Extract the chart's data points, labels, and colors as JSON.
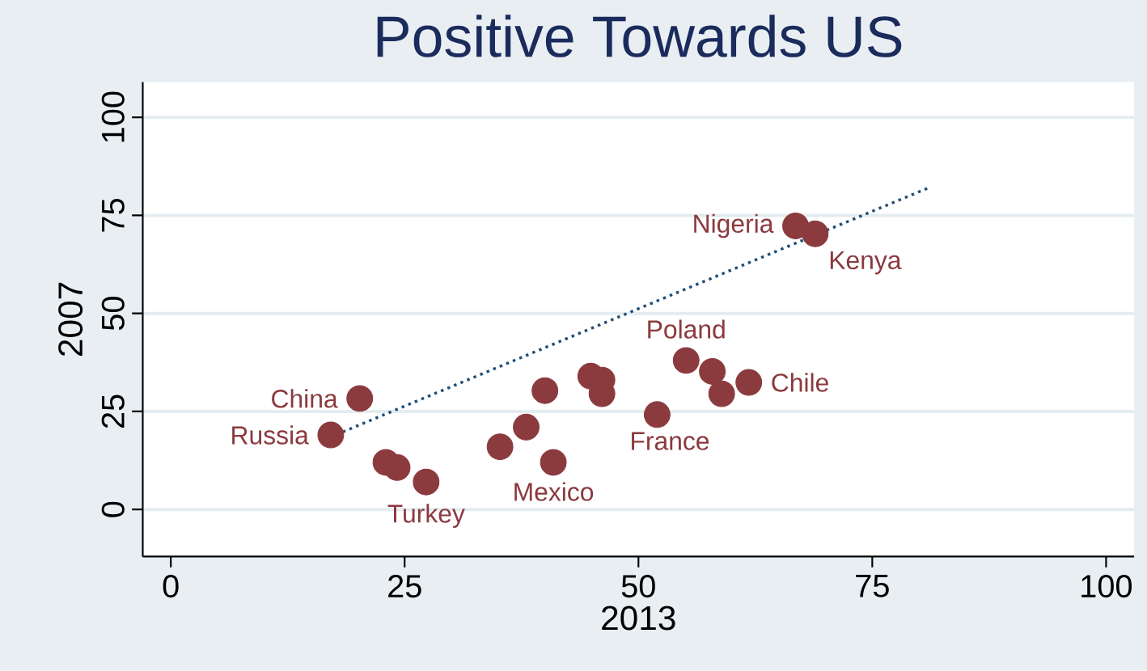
{
  "chart_data": {
    "type": "scatter",
    "title": "Positive Towards US",
    "xlabel": "2013",
    "ylabel": "2007",
    "xlim": [
      -3,
      103
    ],
    "ylim": [
      -12,
      109
    ],
    "xticks": [
      0,
      25,
      50,
      75,
      100
    ],
    "yticks": [
      0,
      25,
      50,
      75,
      100
    ],
    "grid": "y",
    "series": [
      {
        "marker": "circle",
        "color": "#8b3a3e",
        "x": [
          17.1,
          20.2,
          23,
          24.2,
          27.3,
          35.2,
          38,
          40,
          40.9,
          44.9,
          46.1,
          46.1,
          52,
          55.1,
          57.9,
          58.9,
          61.8,
          66.8,
          68.9
        ],
        "values": [
          19,
          28.3,
          12,
          10.7,
          7,
          16,
          21,
          30.3,
          12,
          34,
          33,
          29.5,
          24.2,
          38,
          35.2,
          29.5,
          32.4,
          72.3,
          70.3
        ]
      },
      {
        "type": "line",
        "marker": "none",
        "line_style": "dotted",
        "color": "#1f4e79",
        "x": [
          17,
          81
        ],
        "values": [
          18.4,
          82
        ]
      }
    ],
    "annotations": [
      {
        "text": "Nigeria",
        "x": 66.8,
        "y": 72.3
      },
      {
        "text": "Kenya",
        "x": 68.9,
        "y": 70.3
      },
      {
        "text": "Poland",
        "x": 55.1,
        "y": 38
      },
      {
        "text": "China",
        "x": 20.2,
        "y": 28.3
      },
      {
        "text": "Chile",
        "x": 61.8,
        "y": 32.4
      },
      {
        "text": "Russia",
        "x": 17.1,
        "y": 19
      },
      {
        "text": "France",
        "x": 52,
        "y": 24.2
      },
      {
        "text": "Mexico",
        "x": 40.9,
        "y": 12
      },
      {
        "text": "Turkey",
        "x": 27.3,
        "y": 7
      }
    ]
  }
}
